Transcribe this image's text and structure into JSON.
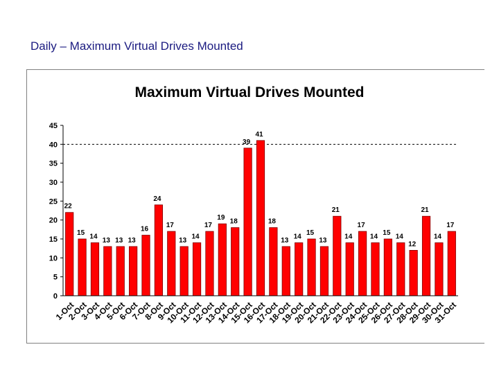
{
  "page": {
    "heading": "Daily – Maximum Virtual Drives Mounted"
  },
  "chart_data": {
    "type": "bar",
    "title": "Maximum Virtual Drives Mounted",
    "xlabel": "",
    "ylabel": "",
    "categories": [
      "1-Oct",
      "2-Oct",
      "3-Oct",
      "4-Oct",
      "5-Oct",
      "6-Oct",
      "7-Oct",
      "8-Oct",
      "9-Oct",
      "10-Oct",
      "11-Oct",
      "12-Oct",
      "13-Oct",
      "14-Oct",
      "15-Oct",
      "16-Oct",
      "17-Oct",
      "18-Oct",
      "19-Oct",
      "20-Oct",
      "21-Oct",
      "22-Oct",
      "23-Oct",
      "24-Oct",
      "25-Oct",
      "26-Oct",
      "27-Oct",
      "28-Oct",
      "29-Oct",
      "30-Oct",
      "31-Oct"
    ],
    "values": [
      22,
      15,
      14,
      13,
      13,
      13,
      16,
      24,
      17,
      13,
      14,
      17,
      19,
      18,
      39,
      41,
      18,
      13,
      14,
      15,
      13,
      21,
      14,
      17,
      14,
      15,
      14,
      12,
      21,
      14,
      17
    ],
    "ylim": [
      0,
      45
    ],
    "yticks": [
      0,
      5,
      10,
      15,
      20,
      25,
      30,
      35,
      40,
      45
    ],
    "reference_line": 40,
    "bar_color": "#ff0000",
    "bar_edge_color": "#800000",
    "grid": false,
    "legend": "none"
  }
}
